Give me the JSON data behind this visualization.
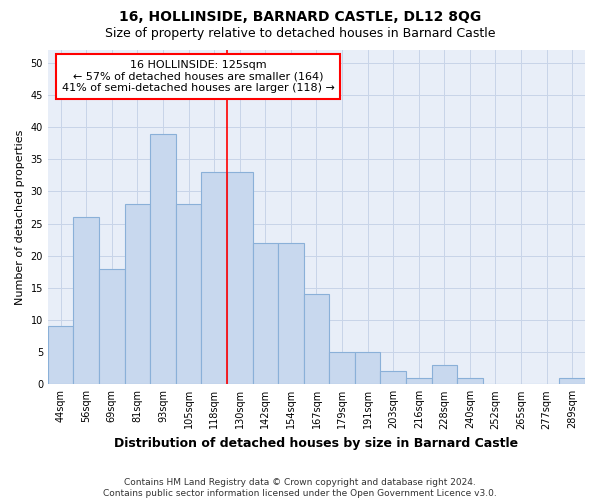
{
  "title": "16, HOLLINSIDE, BARNARD CASTLE, DL12 8QG",
  "subtitle": "Size of property relative to detached houses in Barnard Castle",
  "xlabel": "Distribution of detached houses by size in Barnard Castle",
  "ylabel": "Number of detached properties",
  "categories": [
    "44sqm",
    "56sqm",
    "69sqm",
    "81sqm",
    "93sqm",
    "105sqm",
    "118sqm",
    "130sqm",
    "142sqm",
    "154sqm",
    "167sqm",
    "179sqm",
    "191sqm",
    "203sqm",
    "216sqm",
    "228sqm",
    "240sqm",
    "252sqm",
    "265sqm",
    "277sqm",
    "289sqm"
  ],
  "values": [
    9,
    26,
    18,
    28,
    39,
    28,
    33,
    33,
    22,
    22,
    14,
    5,
    5,
    2,
    1,
    3,
    1,
    0,
    0,
    0,
    1
  ],
  "bar_color": "#c8d8ee",
  "bar_edgecolor": "#8ab0d8",
  "vline_x_index": 7,
  "vline_color": "red",
  "annotation_text": "16 HOLLINSIDE: 125sqm\n← 57% of detached houses are smaller (164)\n41% of semi-detached houses are larger (118) →",
  "annotation_box_color": "white",
  "annotation_box_edgecolor": "red",
  "ylim": [
    0,
    52
  ],
  "yticks": [
    0,
    5,
    10,
    15,
    20,
    25,
    30,
    35,
    40,
    45,
    50
  ],
  "grid_color": "#c8d4e8",
  "background_color": "#e8eef8",
  "footer": "Contains HM Land Registry data © Crown copyright and database right 2024.\nContains public sector information licensed under the Open Government Licence v3.0.",
  "title_fontsize": 10,
  "subtitle_fontsize": 9,
  "xlabel_fontsize": 9,
  "ylabel_fontsize": 8,
  "tick_fontsize": 7,
  "footer_fontsize": 6.5,
  "annotation_fontsize": 8
}
